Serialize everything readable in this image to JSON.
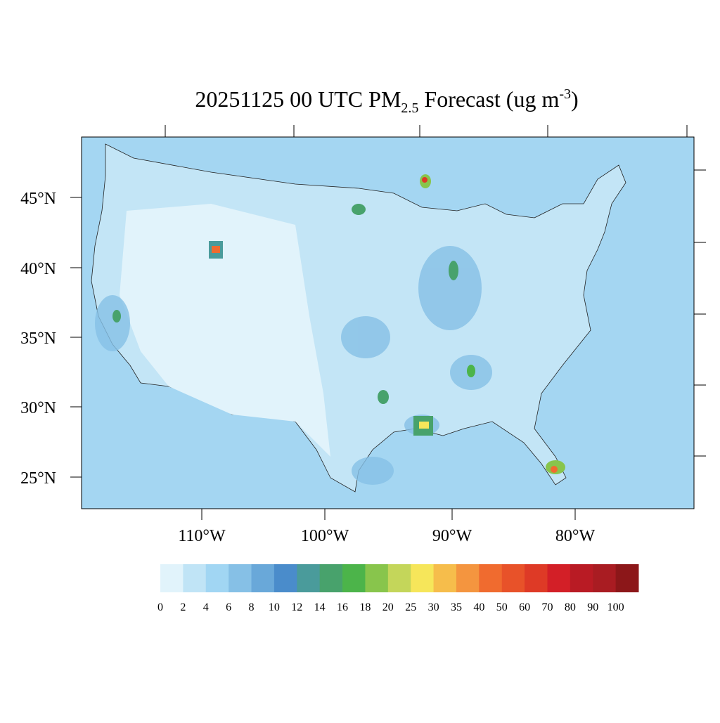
{
  "title": {
    "main": "20251125 00 UTC PM",
    "subscript": "2.5",
    "unit": " Forecast (ug m",
    "superscript": "-3",
    "end": ")"
  },
  "map": {
    "lat_labels": [
      "45°N",
      "40°N",
      "35°N",
      "30°N",
      "25°N"
    ],
    "lon_labels": [
      "110°W",
      "100°W",
      "90°W",
      "80°W"
    ]
  },
  "colorbar": {
    "labels": [
      "0",
      "2",
      "4",
      "6",
      "8",
      "10",
      "12",
      "14",
      "16",
      "18",
      "20",
      "25",
      "30",
      "35",
      "40",
      "50",
      "60",
      "70",
      "80",
      "90",
      "100"
    ],
    "colors": [
      "#e1f3fb",
      "#c0e4f6",
      "#a1d6f3",
      "#86c0e6",
      "#69a8d9",
      "#4a8ccb",
      "#4a9b9b",
      "#48a26c",
      "#4cb44a",
      "#88c54c",
      "#c4d65a",
      "#f6e65a",
      "#f6bd4b",
      "#f4953f",
      "#f06b2f",
      "#e85229",
      "#de3a26",
      "#d31f27",
      "#b91b24",
      "#a91c22",
      "#8c1719"
    ]
  }
}
